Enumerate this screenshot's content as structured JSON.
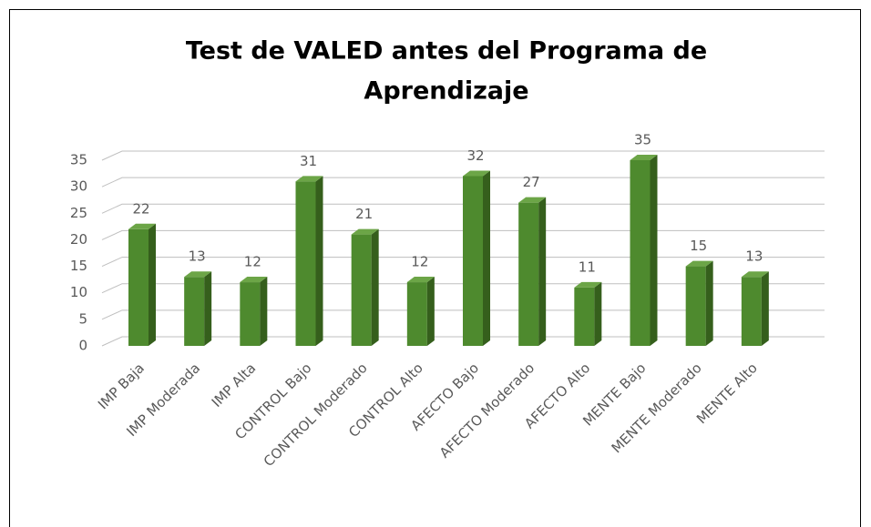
{
  "chart_data": {
    "type": "bar",
    "title": "Test de VALED antes del Programa de Aprendizaje",
    "categories": [
      "IMP Baja",
      "IMP Moderada",
      "IMP Alta",
      "CONTROL Bajo",
      "CONTROL Moderado",
      "CONTROL Alto",
      "AFECTO Bajo",
      "AFECTO Moderado",
      "AFECTO Alto",
      "MENTE Bajo",
      "MENTE Moderado",
      "MENTE Alto"
    ],
    "values": [
      22,
      13,
      12,
      31,
      21,
      12,
      32,
      27,
      11,
      35,
      15,
      13
    ],
    "color": "#4e8a2e",
    "ylim": [
      0,
      35
    ],
    "yticks": [
      0,
      5,
      10,
      15,
      20,
      25,
      30,
      35
    ],
    "grid": true
  }
}
